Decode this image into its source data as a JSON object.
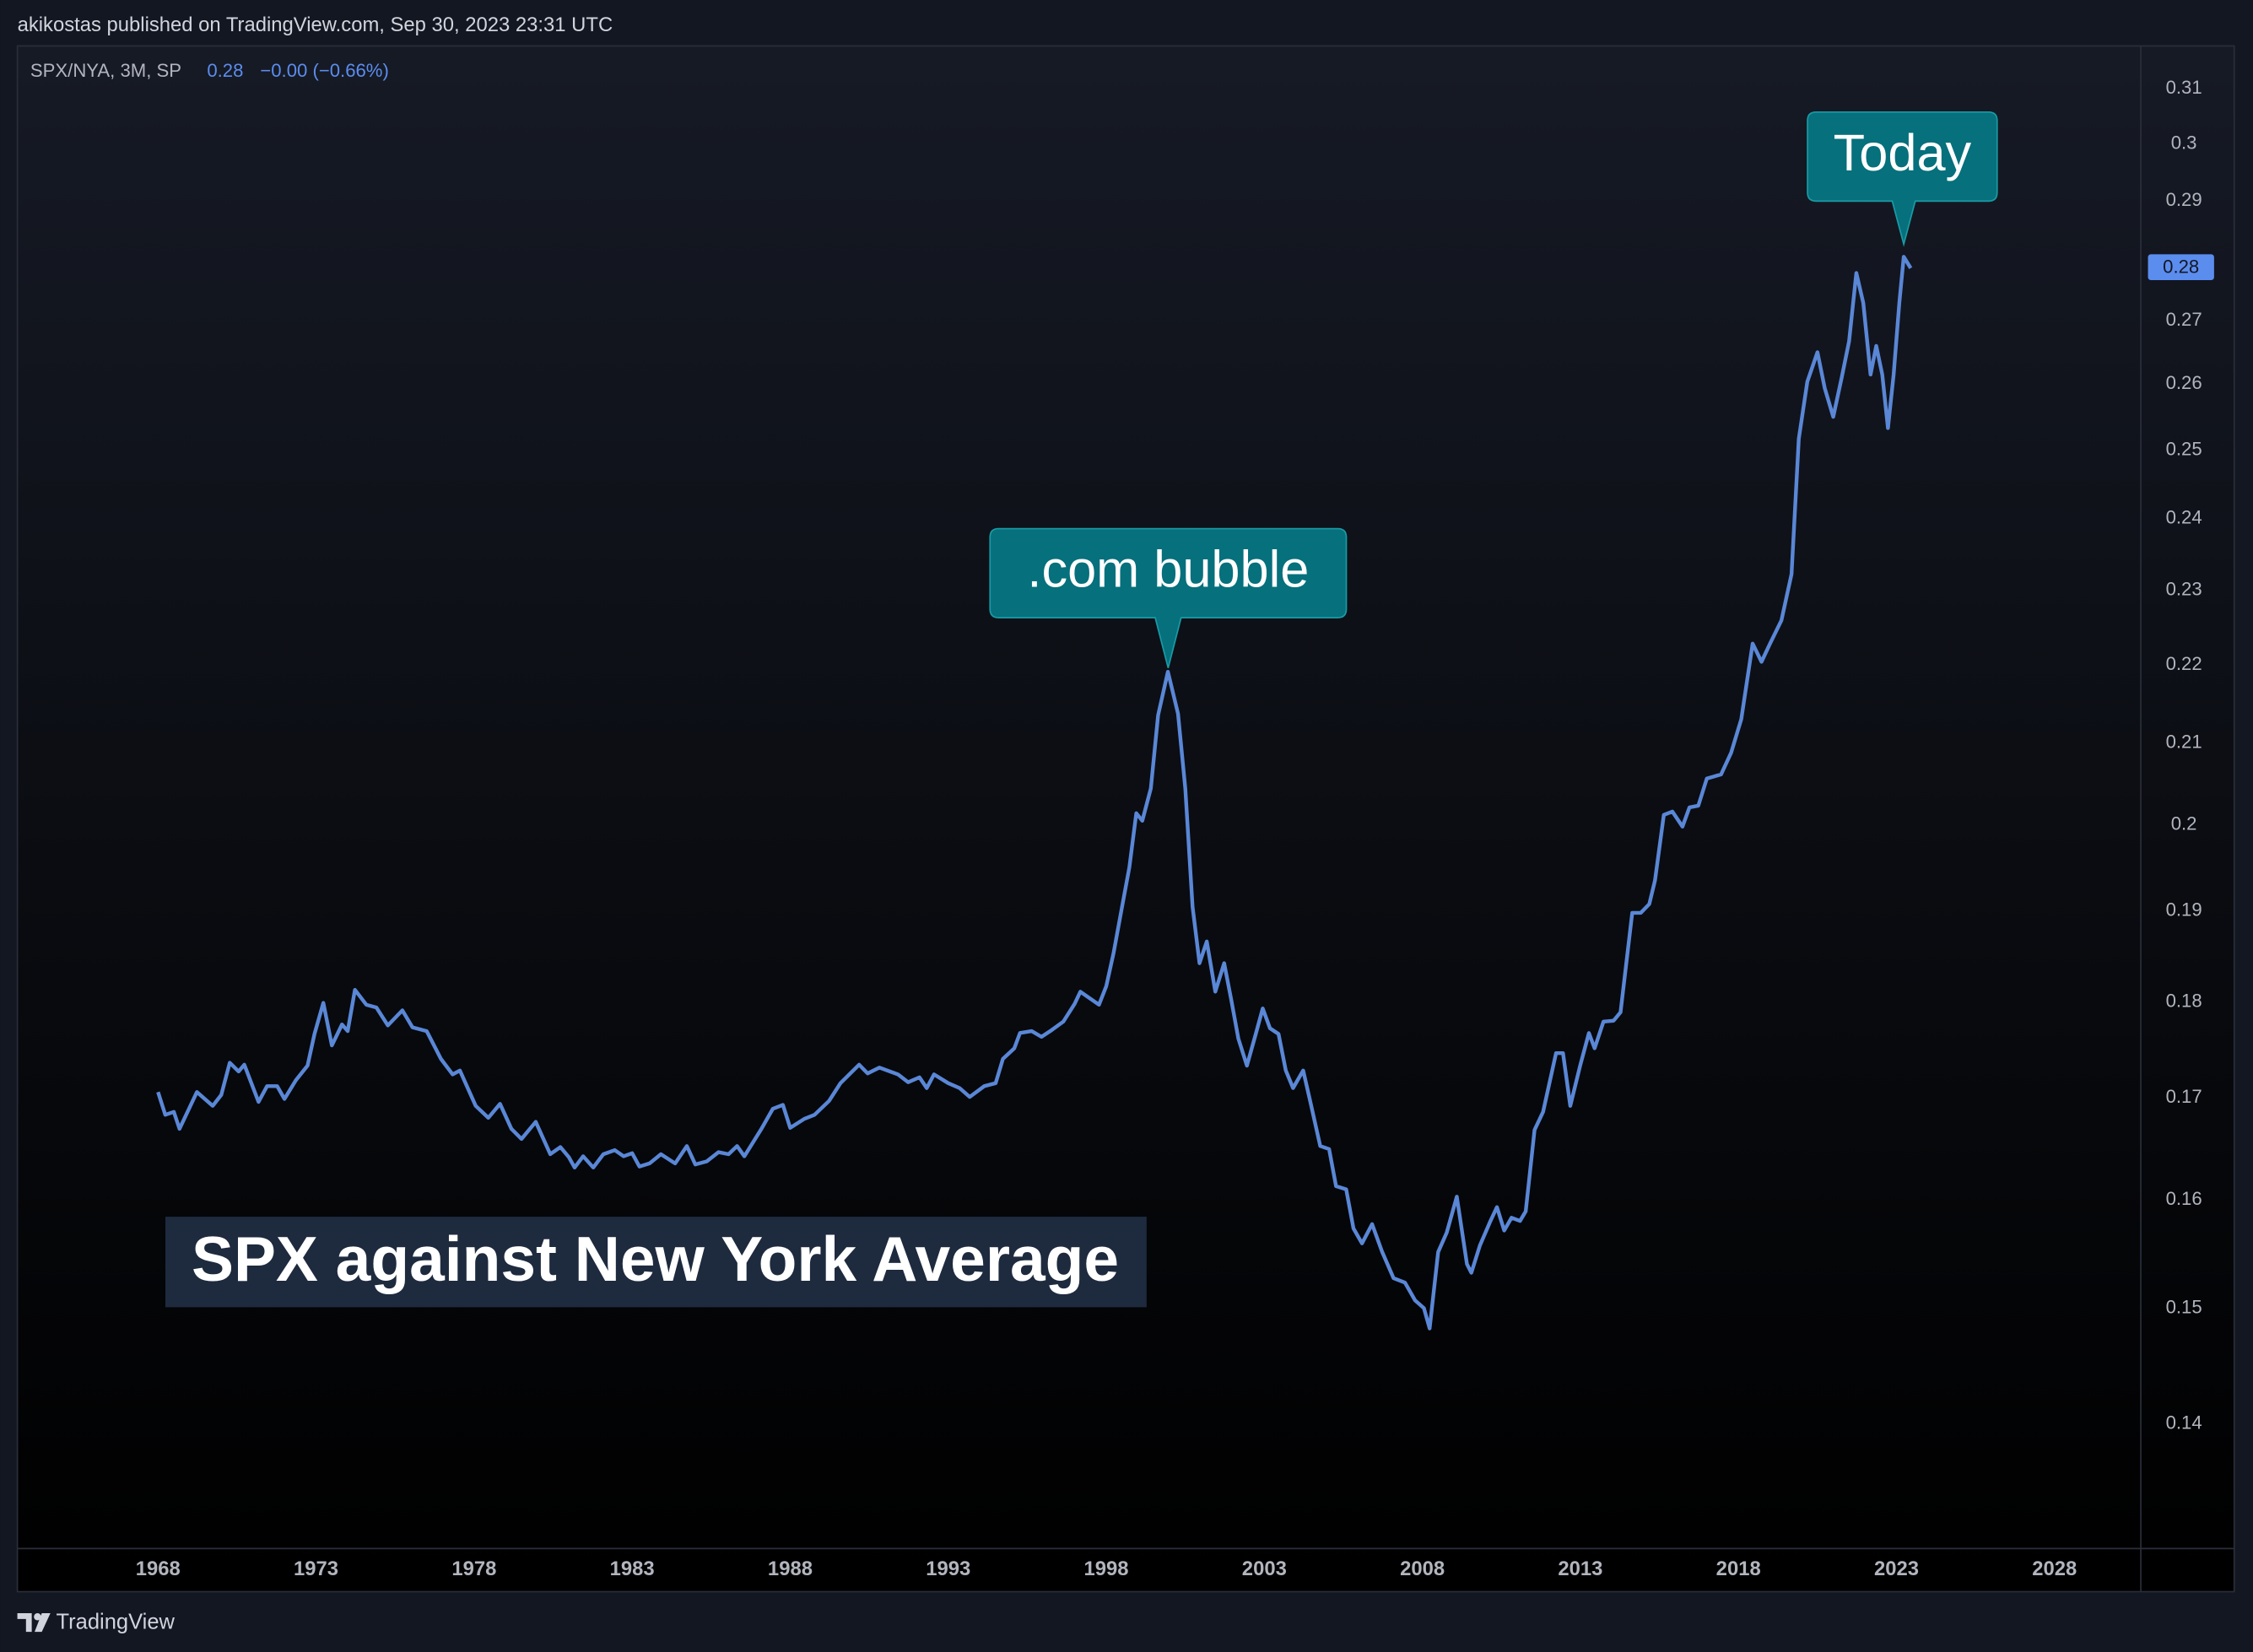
{
  "header": "akikostas published on TradingView.com, Sep 30, 2023 23:31 UTC",
  "footer": "TradingView",
  "chart_data": {
    "type": "line",
    "title": "SPX against New York Average",
    "legend": {
      "last": "0.28",
      "change": "−0.00 (−0.66%)"
    },
    "price_label": "0.28",
    "annotations": [
      ".com bubble",
      "Today"
    ],
    "log_scale": true,
    "grid": false,
    "xlim": [
      1963.55,
      2030.73
    ],
    "xticks": [
      1968,
      1973,
      1978,
      1983,
      1988,
      1993,
      1998,
      2003,
      2008,
      2013,
      2018,
      2023,
      2028
    ],
    "ylim": [
      0.13,
      0.318
    ],
    "yticks": [
      0.14,
      0.15,
      0.16,
      0.17,
      0.18,
      0.19,
      0.2,
      0.21,
      0.22,
      0.23,
      0.24,
      0.25,
      0.26,
      0.27,
      0.29,
      0.3,
      0.31
    ],
    "x": [
      1968.0,
      1968.23,
      1968.5,
      1968.68,
      1969.23,
      1969.73,
      1970.0,
      1970.27,
      1970.55,
      1970.73,
      1971.18,
      1971.45,
      1971.77,
      1972.0,
      1972.36,
      1972.73,
      1972.95,
      1973.23,
      1973.5,
      1973.82,
      1974.0,
      1974.23,
      1974.59,
      1974.91,
      1975.27,
      1975.73,
      1976.05,
      1976.5,
      1976.95,
      1977.32,
      1977.55,
      1978.05,
      1978.45,
      1978.82,
      1979.18,
      1979.5,
      1979.95,
      1980.41,
      1980.73,
      1981.0,
      1981.18,
      1981.45,
      1981.77,
      1982.09,
      1982.45,
      1982.73,
      1983.0,
      1983.23,
      1983.55,
      1983.91,
      1984.36,
      1984.73,
      1985.0,
      1985.36,
      1985.73,
      1986.05,
      1986.32,
      1986.55,
      1987.09,
      1987.45,
      1987.77,
      1988.0,
      1988.45,
      1988.77,
      1989.23,
      1989.59,
      1990.18,
      1990.45,
      1990.82,
      1991.41,
      1991.73,
      1992.09,
      1992.32,
      1992.55,
      1993.0,
      1993.36,
      1993.68,
      1994.14,
      1994.5,
      1994.73,
      1995.09,
      1995.27,
      1995.64,
      1995.95,
      1996.27,
      1996.64,
      1997.0,
      1997.18,
      1997.77,
      1998.0,
      1998.23,
      1998.5,
      1998.73,
      1998.95,
      1999.14,
      1999.41,
      1999.64,
      1999.95,
      2000.27,
      2000.5,
      2000.73,
      2000.95,
      2001.18,
      2001.45,
      2001.73,
      2001.95,
      2002.18,
      2002.45,
      2002.73,
      2002.95,
      2003.18,
      2003.45,
      2003.68,
      2003.91,
      2004.23,
      2004.45,
      2004.77,
      2005.05,
      2005.27,
      2005.59,
      2005.82,
      2006.09,
      2006.41,
      2006.73,
      2007.09,
      2007.45,
      2007.77,
      2008.05,
      2008.23,
      2008.5,
      2008.77,
      2009.09,
      2009.41,
      2009.55,
      2009.82,
      2010.14,
      2010.36,
      2010.59,
      2010.82,
      2011.09,
      2011.27,
      2011.55,
      2011.82,
      2012.23,
      2012.45,
      2012.68,
      2013.0,
      2013.27,
      2013.45,
      2013.73,
      2014.05,
      2014.27,
      2014.64,
      2014.91,
      2015.18,
      2015.36,
      2015.64,
      2015.91,
      2016.23,
      2016.45,
      2016.73,
      2017.0,
      2017.45,
      2017.77,
      2018.09,
      2018.45,
      2018.73,
      2019.0,
      2019.36,
      2019.68,
      2019.91,
      2020.18,
      2020.5,
      2020.73,
      2021.0,
      2021.27,
      2021.5,
      2021.73,
      2021.95,
      2022.18,
      2022.36,
      2022.55,
      2022.73,
      2022.91,
      2023.09,
      2023.23,
      2023.45
    ],
    "series": [
      {
        "name": "SPX/NYA, 3M, SP",
        "color": "#5a87d6",
        "values": [
          0.1706,
          0.1683,
          0.1686,
          0.1669,
          0.1706,
          0.1692,
          0.1703,
          0.1736,
          0.1727,
          0.1734,
          0.1696,
          0.1712,
          0.1712,
          0.1699,
          0.1718,
          0.1733,
          0.1766,
          0.1799,
          0.1754,
          0.1776,
          0.1769,
          0.1813,
          0.1797,
          0.1794,
          0.1775,
          0.1791,
          0.1773,
          0.1769,
          0.174,
          0.1724,
          0.1728,
          0.1692,
          0.168,
          0.1694,
          0.1669,
          0.1659,
          0.1676,
          0.1644,
          0.1651,
          0.1641,
          0.1631,
          0.1642,
          0.1631,
          0.1644,
          0.1648,
          0.1642,
          0.1645,
          0.1632,
          0.1635,
          0.1644,
          0.1635,
          0.1652,
          0.1634,
          0.1637,
          0.1646,
          0.1644,
          0.1652,
          0.1642,
          0.1669,
          0.1689,
          0.1693,
          0.167,
          0.1679,
          0.1683,
          0.1697,
          0.1715,
          0.1734,
          0.1725,
          0.1731,
          0.1724,
          0.1716,
          0.1721,
          0.171,
          0.1724,
          0.1715,
          0.171,
          0.1701,
          0.1712,
          0.1715,
          0.174,
          0.1751,
          0.1767,
          0.1769,
          0.1763,
          0.177,
          0.1779,
          0.1798,
          0.1811,
          0.1797,
          0.1817,
          0.1853,
          0.1905,
          0.195,
          0.2014,
          0.2005,
          0.2044,
          0.2135,
          0.2191,
          0.2137,
          0.2044,
          0.1905,
          0.1842,
          0.1866,
          0.1811,
          0.1842,
          0.1803,
          0.1761,
          0.1733,
          0.1766,
          0.1793,
          0.1772,
          0.1766,
          0.1728,
          0.171,
          0.1728,
          0.1697,
          0.1652,
          0.1649,
          0.1613,
          0.161,
          0.1573,
          0.1559,
          0.1577,
          0.1551,
          0.1527,
          0.1523,
          0.1507,
          0.15,
          0.1482,
          0.1551,
          0.1569,
          0.1603,
          0.154,
          0.1532,
          0.1557,
          0.1579,
          0.1593,
          0.1571,
          0.1583,
          0.158,
          0.1589,
          0.1668,
          0.1686,
          0.1746,
          0.1746,
          0.1692,
          0.1734,
          0.1767,
          0.1751,
          0.1779,
          0.178,
          0.1789,
          0.1898,
          0.1898,
          0.1908,
          0.1935,
          0.2012,
          0.2016,
          0.1998,
          0.2021,
          0.2023,
          0.2056,
          0.2061,
          0.2088,
          0.213,
          0.2228,
          0.2204,
          0.2228,
          0.2259,
          0.2322,
          0.2517,
          0.2604,
          0.265,
          0.2594,
          0.255,
          0.2611,
          0.2667,
          0.2778,
          0.2729,
          0.2615,
          0.266,
          0.2615,
          0.2533,
          0.2615,
          0.2729,
          0.2805,
          0.2786
        ]
      }
    ]
  }
}
